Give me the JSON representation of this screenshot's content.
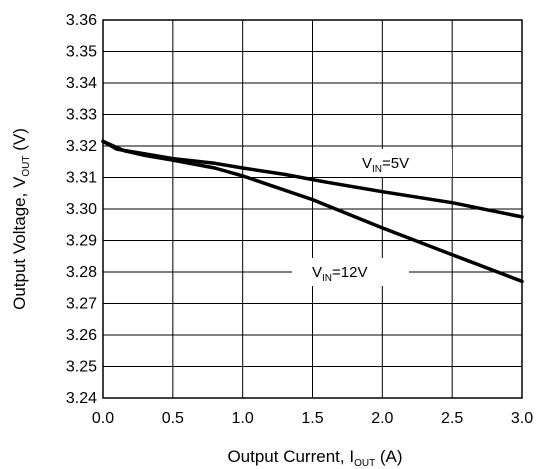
{
  "chart_data": {
    "type": "line",
    "xlabel": {
      "main": "Output Current, I",
      "sub": "OUT",
      "tail": " (A)"
    },
    "ylabel": {
      "main": "Output Voltage, V",
      "sub": "OUT",
      "tail": " (V)"
    },
    "xlim": [
      0.0,
      3.0
    ],
    "ylim": [
      3.24,
      3.36
    ],
    "x_ticks": [
      "0.0",
      "0.5",
      "1.0",
      "1.5",
      "2.0",
      "2.5",
      "3.0"
    ],
    "y_ticks": [
      "3.24",
      "3.25",
      "3.26",
      "3.27",
      "3.28",
      "3.29",
      "3.30",
      "3.31",
      "3.32",
      "3.33",
      "3.34",
      "3.35",
      "3.36"
    ],
    "grid": true,
    "series": [
      {
        "label": {
          "main": "V",
          "sub": "IN",
          "tail": "=5V"
        },
        "x": [
          0.0,
          0.1,
          0.3,
          0.5,
          0.8,
          1.0,
          1.3,
          1.6,
          2.0,
          2.5,
          3.0
        ],
        "y": [
          3.3215,
          3.319,
          3.3175,
          3.316,
          3.3145,
          3.313,
          3.311,
          3.3085,
          3.3055,
          3.302,
          3.2975
        ]
      },
      {
        "label": {
          "main": "V",
          "sub": "IN",
          "tail": "=12V"
        },
        "x": [
          0.0,
          0.15,
          0.3,
          0.5,
          0.8,
          1.0,
          1.5,
          2.0,
          2.5,
          3.0
        ],
        "y": [
          3.3215,
          3.3185,
          3.317,
          3.3155,
          3.313,
          3.3105,
          3.303,
          3.294,
          3.2855,
          3.277
        ]
      }
    ]
  }
}
